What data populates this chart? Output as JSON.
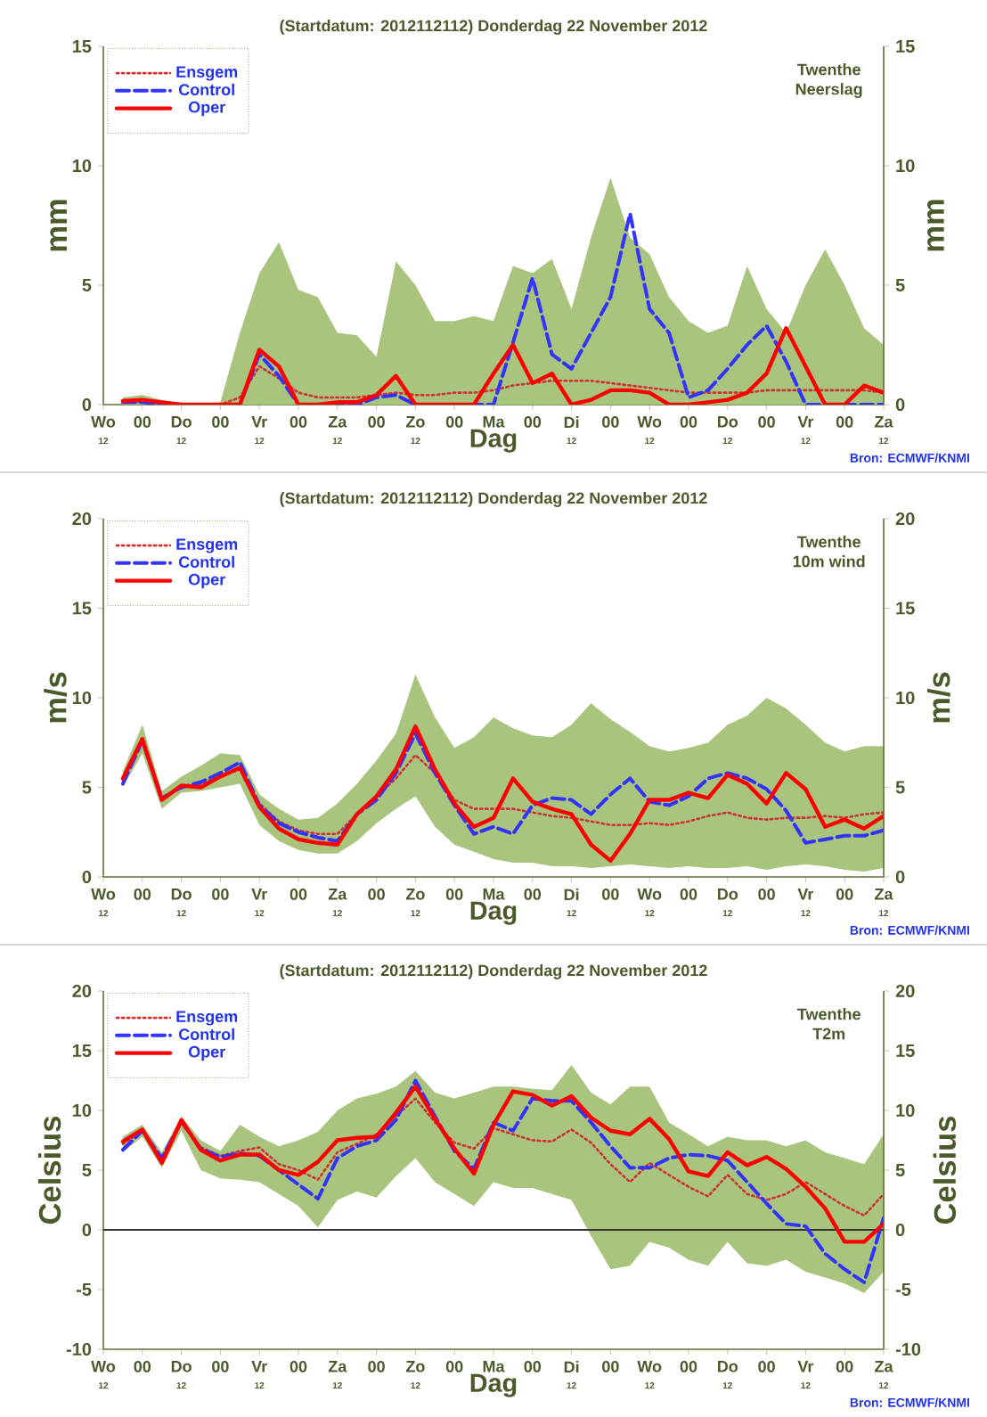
{
  "chart_data": [
    {
      "type": "line",
      "title": "(Startdatum: 2012112112) Donderdag 22 November 2012",
      "xlabel": "Dag",
      "ylabel": "mm",
      "y2label": "mm",
      "annotations": [
        "Twenthe",
        "Neerslag",
        "Bron: ECMWF/KNMI"
      ],
      "x": [
        "2012-11-21T18:00",
        "2012-11-22T00:00",
        "2012-11-22T06:00",
        "2012-11-22T12:00",
        "2012-11-22T18:00",
        "2012-11-23T00:00",
        "2012-11-23T06:00",
        "2012-11-23T12:00",
        "2012-11-23T18:00",
        "2012-11-24T00:00",
        "2012-11-24T06:00",
        "2012-11-24T12:00",
        "2012-11-24T18:00",
        "2012-11-25T00:00",
        "2012-11-25T06:00",
        "2012-11-25T12:00",
        "2012-11-25T18:00",
        "2012-11-26T00:00",
        "2012-11-26T06:00",
        "2012-11-26T12:00",
        "2012-11-26T18:00",
        "2012-11-27T00:00",
        "2012-11-27T06:00",
        "2012-11-27T12:00",
        "2012-11-27T18:00",
        "2012-11-28T00:00",
        "2012-11-28T06:00",
        "2012-11-28T12:00",
        "2012-11-28T18:00",
        "2012-11-29T00:00",
        "2012-11-29T06:00",
        "2012-11-29T12:00",
        "2012-11-29T18:00",
        "2012-11-30T00:00",
        "2012-11-30T06:00",
        "2012-11-30T12:00",
        "2012-11-30T18:00",
        "2012-12-01T00:00",
        "2012-12-01T06:00",
        "2012-12-01T12:00"
      ],
      "xlim": [
        "2012-11-21T12:00",
        "2012-12-01T12:00"
      ],
      "xticks": [
        {
          "value": "2012-11-21T12:00",
          "label": "Wo"
        },
        {
          "value": "2012-11-22T00:00",
          "label": "00"
        },
        {
          "value": "2012-11-22T12:00",
          "label": "Do"
        },
        {
          "value": "2012-11-23T00:00",
          "label": "00"
        },
        {
          "value": "2012-11-23T12:00",
          "label": "Vr"
        },
        {
          "value": "2012-11-24T00:00",
          "label": "00"
        },
        {
          "value": "2012-11-24T12:00",
          "label": "Za"
        },
        {
          "value": "2012-11-25T00:00",
          "label": "00"
        },
        {
          "value": "2012-11-25T12:00",
          "label": "Zo"
        },
        {
          "value": "2012-11-26T00:00",
          "label": "00"
        },
        {
          "value": "2012-11-26T12:00",
          "label": "Ma"
        },
        {
          "value": "2012-11-27T00:00",
          "label": "00"
        },
        {
          "value": "2012-11-27T12:00",
          "label": "Di"
        },
        {
          "value": "2012-11-28T00:00",
          "label": "00"
        },
        {
          "value": "2012-11-28T12:00",
          "label": "Wo"
        },
        {
          "value": "2012-11-29T00:00",
          "label": "00"
        },
        {
          "value": "2012-11-29T12:00",
          "label": "Do"
        },
        {
          "value": "2012-11-30T00:00",
          "label": "00"
        },
        {
          "value": "2012-11-30T12:00",
          "label": "Vr"
        },
        {
          "value": "2012-12-01T00:00",
          "label": "00"
        },
        {
          "value": "2012-12-01T12:00",
          "label": "Za"
        }
      ],
      "x2lim": [
        "2012-11-21T12:00",
        "2012-12-01T12:00"
      ],
      "x2ticks": [
        {
          "value": "2012-11-21T12:00",
          "label": "12"
        },
        {
          "value": "2012-11-22T12:00",
          "label": "12"
        },
        {
          "value": "2012-11-23T12:00",
          "label": "12"
        },
        {
          "value": "2012-11-24T12:00",
          "label": "12"
        },
        {
          "value": "2012-11-25T12:00",
          "label": "12"
        },
        {
          "value": "2012-11-27T12:00",
          "label": "12"
        },
        {
          "value": "2012-11-28T12:00",
          "label": "12"
        },
        {
          "value": "2012-11-29T12:00",
          "label": "12"
        },
        {
          "value": "2012-11-30T12:00",
          "label": "12"
        },
        {
          "value": "2012-12-01T12:00",
          "label": "12"
        }
      ],
      "ylim": [
        0,
        15
      ],
      "yticks": [
        0,
        5,
        10,
        15
      ],
      "y2lim": [
        0,
        15
      ],
      "y2ticks": [
        0,
        5,
        10,
        15
      ],
      "legend": "top left",
      "marker": "none",
      "series": [
        {
          "name": "Ensgem",
          "color": "#cc3333",
          "line_style": "dotted",
          "values": [
            0.1,
            0.1,
            0.05,
            0,
            0,
            0,
            0.3,
            1.6,
            1.1,
            0.5,
            0.3,
            0.3,
            0.3,
            0.4,
            0.5,
            0.4,
            0.4,
            0.5,
            0.5,
            0.6,
            0.8,
            0.9,
            1.0,
            1.0,
            1.0,
            0.9,
            0.8,
            0.7,
            0.6,
            0.5,
            0.5,
            0.5,
            0.5,
            0.6,
            0.6,
            0.6,
            0.6,
            0.6,
            0.6,
            0.5
          ],
          "lower": [
            0,
            0,
            0,
            0,
            0,
            0,
            0,
            0,
            0,
            0,
            0,
            0,
            0,
            0,
            0,
            0,
            0,
            0,
            0,
            0,
            0,
            0,
            0,
            0,
            0,
            0,
            0,
            0,
            0,
            0,
            0,
            0,
            0,
            0,
            0,
            0,
            0,
            0,
            0,
            0
          ],
          "upper": [
            0.3,
            0.4,
            0.2,
            0,
            0,
            0.1,
            3.0,
            5.5,
            6.8,
            4.8,
            4.5,
            3.0,
            2.9,
            2.0,
            6.0,
            5.0,
            3.5,
            3.5,
            3.7,
            3.5,
            5.8,
            5.5,
            6.1,
            4.0,
            7.0,
            9.5,
            7.0,
            6.3,
            4.5,
            3.5,
            3.0,
            3.3,
            5.8,
            4.0,
            3.0,
            5.0,
            6.5,
            5.0,
            3.2,
            2.5
          ]
        },
        {
          "name": "Control",
          "color": "#3333ff",
          "line_style": "dashed",
          "values": [
            0.1,
            0.1,
            0,
            0,
            0,
            0,
            0,
            2.1,
            1.2,
            0,
            0,
            0,
            0,
            0.3,
            0.4,
            0,
            0,
            0,
            0,
            0,
            2.6,
            5.3,
            2.1,
            1.5,
            3.0,
            4.5,
            8.0,
            4.0,
            3.0,
            0.3,
            0.6,
            1.5,
            2.5,
            3.3,
            1.8,
            0,
            0,
            0,
            0,
            0
          ]
        },
        {
          "name": "Oper",
          "color": "#ff0000",
          "line_style": "solid",
          "values": [
            0.15,
            0.2,
            0.1,
            0,
            0,
            0,
            0,
            2.3,
            1.6,
            0,
            0,
            0.1,
            0.1,
            0.4,
            1.2,
            0,
            0,
            0,
            0,
            1.3,
            2.5,
            0.9,
            1.3,
            0,
            0.2,
            0.6,
            0.6,
            0.5,
            0,
            0,
            0.1,
            0.2,
            0.5,
            1.3,
            3.2,
            1.6,
            0,
            0,
            0.8,
            0.5
          ]
        }
      ]
    },
    {
      "type": "line",
      "title": "(Startdatum: 2012112112) Donderdag 22 November 2012",
      "xlabel": "Dag",
      "ylabel": "m/s",
      "y2label": "m/s",
      "annotations": [
        "Twenthe",
        "10m wind",
        "Bron: ECMWF/KNMI"
      ],
      "x": [
        "2012-11-21T18:00",
        "2012-11-22T00:00",
        "2012-11-22T06:00",
        "2012-11-22T12:00",
        "2012-11-22T18:00",
        "2012-11-23T00:00",
        "2012-11-23T06:00",
        "2012-11-23T12:00",
        "2012-11-23T18:00",
        "2012-11-24T00:00",
        "2012-11-24T06:00",
        "2012-11-24T12:00",
        "2012-11-24T18:00",
        "2012-11-25T00:00",
        "2012-11-25T06:00",
        "2012-11-25T12:00",
        "2012-11-25T18:00",
        "2012-11-26T00:00",
        "2012-11-26T06:00",
        "2012-11-26T12:00",
        "2012-11-26T18:00",
        "2012-11-27T00:00",
        "2012-11-27T06:00",
        "2012-11-27T12:00",
        "2012-11-27T18:00",
        "2012-11-28T00:00",
        "2012-11-28T06:00",
        "2012-11-28T12:00",
        "2012-11-28T18:00",
        "2012-11-29T00:00",
        "2012-11-29T06:00",
        "2012-11-29T12:00",
        "2012-11-29T18:00",
        "2012-11-30T00:00",
        "2012-11-30T06:00",
        "2012-11-30T12:00",
        "2012-11-30T18:00",
        "2012-12-01T00:00",
        "2012-12-01T06:00",
        "2012-12-01T12:00"
      ],
      "xlim": [
        "2012-11-21T12:00",
        "2012-12-01T12:00"
      ],
      "xticks": [
        {
          "value": "2012-11-21T12:00",
          "label": "Wo"
        },
        {
          "value": "2012-11-22T00:00",
          "label": "00"
        },
        {
          "value": "2012-11-22T12:00",
          "label": "Do"
        },
        {
          "value": "2012-11-23T00:00",
          "label": "00"
        },
        {
          "value": "2012-11-23T12:00",
          "label": "Vr"
        },
        {
          "value": "2012-11-24T00:00",
          "label": "00"
        },
        {
          "value": "2012-11-24T12:00",
          "label": "Za"
        },
        {
          "value": "2012-11-25T00:00",
          "label": "00"
        },
        {
          "value": "2012-11-25T12:00",
          "label": "Zo"
        },
        {
          "value": "2012-11-26T00:00",
          "label": "00"
        },
        {
          "value": "2012-11-26T12:00",
          "label": "Ma"
        },
        {
          "value": "2012-11-27T00:00",
          "label": "00"
        },
        {
          "value": "2012-11-27T12:00",
          "label": "Di"
        },
        {
          "value": "2012-11-28T00:00",
          "label": "00"
        },
        {
          "value": "2012-11-28T12:00",
          "label": "Wo"
        },
        {
          "value": "2012-11-29T00:00",
          "label": "00"
        },
        {
          "value": "2012-11-29T12:00",
          "label": "Do"
        },
        {
          "value": "2012-11-30T00:00",
          "label": "00"
        },
        {
          "value": "2012-11-30T12:00",
          "label": "Vr"
        },
        {
          "value": "2012-12-01T00:00",
          "label": "00"
        },
        {
          "value": "2012-12-01T12:00",
          "label": "Za"
        }
      ],
      "x2lim": [
        "2012-11-21T12:00",
        "2012-12-01T12:00"
      ],
      "x2ticks": [
        {
          "value": "2012-11-21T12:00",
          "label": "12"
        },
        {
          "value": "2012-11-22T12:00",
          "label": "12"
        },
        {
          "value": "2012-11-23T12:00",
          "label": "12"
        },
        {
          "value": "2012-11-24T12:00",
          "label": "12"
        },
        {
          "value": "2012-11-25T12:00",
          "label": "12"
        },
        {
          "value": "2012-11-27T12:00",
          "label": "12"
        },
        {
          "value": "2012-11-28T12:00",
          "label": "12"
        },
        {
          "value": "2012-11-29T12:00",
          "label": "12"
        },
        {
          "value": "2012-11-30T12:00",
          "label": "12"
        },
        {
          "value": "2012-12-01T12:00",
          "label": "12"
        }
      ],
      "ylim": [
        0,
        20
      ],
      "yticks": [
        0,
        5,
        10,
        15,
        20
      ],
      "y2lim": [
        0,
        20
      ],
      "y2ticks": [
        0,
        5,
        10,
        15,
        20
      ],
      "legend": "top left",
      "marker": "none",
      "series": [
        {
          "name": "Ensgem",
          "color": "#cc3333",
          "line_style": "dotted",
          "values": [
            5.4,
            7.6,
            4.4,
            5.0,
            5.2,
            5.6,
            6.0,
            4.1,
            3.1,
            2.6,
            2.4,
            2.4,
            3.5,
            4.5,
            5.5,
            6.8,
            5.8,
            4.3,
            3.8,
            3.8,
            3.8,
            3.6,
            3.4,
            3.3,
            3.1,
            2.9,
            2.9,
            3.0,
            2.9,
            3.1,
            3.4,
            3.6,
            3.3,
            3.2,
            3.3,
            3.3,
            3.4,
            3.3,
            3.5,
            3.6
          ],
          "lower": [
            5.0,
            6.9,
            3.8,
            4.7,
            4.8,
            5.0,
            5.2,
            2.9,
            2.0,
            1.5,
            1.3,
            1.3,
            2.0,
            3.0,
            3.8,
            4.5,
            2.8,
            1.8,
            1.4,
            1.0,
            0.8,
            0.8,
            0.6,
            0.6,
            0.5,
            0.6,
            0.7,
            0.6,
            0.5,
            0.6,
            0.5,
            0.5,
            0.6,
            0.4,
            0.6,
            0.7,
            0.6,
            0.4,
            0.3,
            0.5
          ],
          "upper": [
            5.9,
            8.5,
            4.8,
            5.6,
            6.2,
            6.9,
            6.8,
            4.6,
            3.8,
            3.2,
            3.3,
            4.1,
            5.2,
            6.5,
            8.0,
            11.3,
            8.9,
            7.2,
            7.8,
            8.9,
            8.3,
            7.9,
            7.8,
            8.5,
            9.7,
            8.8,
            8.1,
            7.3,
            7.0,
            7.2,
            7.5,
            8.5,
            9.0,
            10.0,
            9.4,
            8.5,
            7.5,
            7.0,
            7.3,
            7.3
          ]
        },
        {
          "name": "Control",
          "color": "#3333ff",
          "line_style": "dashed",
          "values": [
            5.2,
            7.6,
            4.4,
            5.0,
            5.3,
            5.8,
            6.4,
            4.0,
            3.0,
            2.5,
            2.2,
            2.0,
            3.5,
            4.3,
            5.8,
            8.0,
            5.8,
            4.0,
            2.4,
            2.8,
            2.4,
            4.0,
            4.4,
            4.3,
            3.5,
            4.6,
            5.5,
            4.2,
            4.0,
            4.5,
            5.5,
            5.8,
            5.5,
            4.9,
            3.7,
            1.9,
            2.1,
            2.3,
            2.3,
            2.6
          ]
        },
        {
          "name": "Oper",
          "color": "#ff0000",
          "line_style": "solid",
          "values": [
            5.5,
            7.7,
            4.3,
            5.1,
            5.0,
            5.6,
            6.1,
            3.9,
            2.7,
            2.1,
            1.9,
            1.8,
            3.5,
            4.5,
            6.0,
            8.4,
            6.0,
            4.1,
            2.8,
            3.3,
            5.5,
            4.2,
            3.8,
            3.5,
            1.8,
            0.9,
            2.4,
            4.3,
            4.3,
            4.7,
            4.4,
            5.7,
            5.2,
            4.1,
            5.8,
            4.9,
            2.8,
            3.2,
            2.7,
            3.4
          ]
        }
      ]
    },
    {
      "type": "line",
      "title": "(Startdatum: 2012112112) Donderdag 22 November 2012",
      "xlabel": "Dag",
      "ylabel": "Celsius",
      "y2label": "Celsius",
      "annotations": [
        "Twenthe",
        "T2m",
        "Bron: ECMWF/KNMI"
      ],
      "x": [
        "2012-11-21T18:00",
        "2012-11-22T00:00",
        "2012-11-22T06:00",
        "2012-11-22T12:00",
        "2012-11-22T18:00",
        "2012-11-23T00:00",
        "2012-11-23T06:00",
        "2012-11-23T12:00",
        "2012-11-23T18:00",
        "2012-11-24T00:00",
        "2012-11-24T06:00",
        "2012-11-24T12:00",
        "2012-11-24T18:00",
        "2012-11-25T00:00",
        "2012-11-25T06:00",
        "2012-11-25T12:00",
        "2012-11-25T18:00",
        "2012-11-26T00:00",
        "2012-11-26T06:00",
        "2012-11-26T12:00",
        "2012-11-26T18:00",
        "2012-11-27T00:00",
        "2012-11-27T06:00",
        "2012-11-27T12:00",
        "2012-11-27T18:00",
        "2012-11-28T00:00",
        "2012-11-28T06:00",
        "2012-11-28T12:00",
        "2012-11-28T18:00",
        "2012-11-29T00:00",
        "2012-11-29T06:00",
        "2012-11-29T12:00",
        "2012-11-29T18:00",
        "2012-11-30T00:00",
        "2012-11-30T06:00",
        "2012-11-30T12:00",
        "2012-11-30T18:00",
        "2012-12-01T00:00",
        "2012-12-01T06:00",
        "2012-12-01T12:00"
      ],
      "xlim": [
        "2012-11-21T12:00",
        "2012-12-01T12:00"
      ],
      "xticks": [
        {
          "value": "2012-11-21T12:00",
          "label": "Wo"
        },
        {
          "value": "2012-11-22T00:00",
          "label": "00"
        },
        {
          "value": "2012-11-22T12:00",
          "label": "Do"
        },
        {
          "value": "2012-11-23T00:00",
          "label": "00"
        },
        {
          "value": "2012-11-23T12:00",
          "label": "Vr"
        },
        {
          "value": "2012-11-24T00:00",
          "label": "00"
        },
        {
          "value": "2012-11-24T12:00",
          "label": "Za"
        },
        {
          "value": "2012-11-25T00:00",
          "label": "00"
        },
        {
          "value": "2012-11-25T12:00",
          "label": "Zo"
        },
        {
          "value": "2012-11-26T00:00",
          "label": "00"
        },
        {
          "value": "2012-11-26T12:00",
          "label": "Ma"
        },
        {
          "value": "2012-11-27T00:00",
          "label": "00"
        },
        {
          "value": "2012-11-27T12:00",
          "label": "Di"
        },
        {
          "value": "2012-11-28T00:00",
          "label": "00"
        },
        {
          "value": "2012-11-28T12:00",
          "label": "Wo"
        },
        {
          "value": "2012-11-29T00:00",
          "label": "00"
        },
        {
          "value": "2012-11-29T12:00",
          "label": "Do"
        },
        {
          "value": "2012-11-30T00:00",
          "label": "00"
        },
        {
          "value": "2012-11-30T12:00",
          "label": "Vr"
        },
        {
          "value": "2012-12-01T00:00",
          "label": "00"
        },
        {
          "value": "2012-12-01T12:00",
          "label": "Za"
        }
      ],
      "x2lim": [
        "2012-11-21T12:00",
        "2012-12-01T12:00"
      ],
      "x2ticks": [
        {
          "value": "2012-11-21T12:00",
          "label": "12"
        },
        {
          "value": "2012-11-22T12:00",
          "label": "12"
        },
        {
          "value": "2012-11-23T12:00",
          "label": "12"
        },
        {
          "value": "2012-11-24T12:00",
          "label": "12"
        },
        {
          "value": "2012-11-25T12:00",
          "label": "12"
        },
        {
          "value": "2012-11-27T12:00",
          "label": "12"
        },
        {
          "value": "2012-11-28T12:00",
          "label": "12"
        },
        {
          "value": "2012-11-29T12:00",
          "label": "12"
        },
        {
          "value": "2012-11-30T12:00",
          "label": "12"
        },
        {
          "value": "2012-12-01T12:00",
          "label": "12"
        }
      ],
      "ylim": [
        -10,
        20
      ],
      "yticks": [
        -10,
        -5,
        0,
        5,
        10,
        15,
        20
      ],
      "y2lim": [
        -10,
        20
      ],
      "y2ticks": [
        -10,
        -5,
        0,
        5,
        10,
        15,
        20
      ],
      "legend": "top left",
      "marker": "none",
      "ref_lines": [
        {
          "axis": "y",
          "value": 0,
          "color": "#333333"
        }
      ],
      "series": [
        {
          "name": "Ensgem",
          "color": "#cc3333",
          "line_style": "dotted",
          "values": [
            7.2,
            8.3,
            6.0,
            8.9,
            6.9,
            6.2,
            6.6,
            6.9,
            5.5,
            5.0,
            4.2,
            6.5,
            7.2,
            8.0,
            9.5,
            11.0,
            9.0,
            7.3,
            6.8,
            8.5,
            8.0,
            7.5,
            7.4,
            8.4,
            7.3,
            5.5,
            4.0,
            5.6,
            4.6,
            3.6,
            2.8,
            4.6,
            3.0,
            2.5,
            3.0,
            4.0,
            3.0,
            2.0,
            1.2,
            3.0
          ],
          "lower": [
            6.5,
            7.8,
            5.2,
            8.3,
            5.0,
            4.3,
            4.2,
            4.0,
            3.0,
            2.0,
            0.2,
            2.5,
            3.2,
            2.7,
            4.5,
            6.0,
            4.0,
            3.0,
            2.0,
            4.0,
            3.5,
            3.5,
            3.0,
            2.5,
            -0.5,
            -3.3,
            -3.0,
            -1.0,
            -1.5,
            -2.5,
            -3.0,
            -1.0,
            -2.8,
            -3.0,
            -2.5,
            -3.5,
            -4.0,
            -4.5,
            -5.3,
            -3.5
          ],
          "upper": [
            7.8,
            8.8,
            6.5,
            9.5,
            7.5,
            6.6,
            8.8,
            7.8,
            7.0,
            7.5,
            8.2,
            10.0,
            11.0,
            11.4,
            12.0,
            13.3,
            11.5,
            11.0,
            11.5,
            12.0,
            12.0,
            11.8,
            11.7,
            13.8,
            11.5,
            10.5,
            12.0,
            12.0,
            9.0,
            8.0,
            7.0,
            7.8,
            7.5,
            7.5,
            7.0,
            7.5,
            6.5,
            6.0,
            5.5,
            8.0
          ]
        },
        {
          "name": "Control",
          "color": "#3333ff",
          "line_style": "dashed",
          "values": [
            6.7,
            8.3,
            6.0,
            9.1,
            6.8,
            6.1,
            6.4,
            6.2,
            5.0,
            3.8,
            2.6,
            6.0,
            7.0,
            7.5,
            9.2,
            12.5,
            9.5,
            6.6,
            5.1,
            9.0,
            8.3,
            11.0,
            10.8,
            10.8,
            9.0,
            7.0,
            5.2,
            5.2,
            6.0,
            6.3,
            6.2,
            5.8,
            4.0,
            2.2,
            0.5,
            0.3,
            -2.0,
            -3.3,
            -4.4,
            1.0
          ]
        },
        {
          "name": "Oper",
          "color": "#ff0000",
          "line_style": "solid",
          "values": [
            7.4,
            8.4,
            5.6,
            9.2,
            6.7,
            5.8,
            6.3,
            6.3,
            5.0,
            4.6,
            5.7,
            7.5,
            7.7,
            7.8,
            9.8,
            12.0,
            9.3,
            6.8,
            4.7,
            8.8,
            11.6,
            11.3,
            10.4,
            11.2,
            9.4,
            8.3,
            8.0,
            9.3,
            7.6,
            4.9,
            4.5,
            6.5,
            5.4,
            6.1,
            5.1,
            3.6,
            1.8,
            -1.0,
            -1.0,
            0.5
          ]
        }
      ]
    }
  ]
}
